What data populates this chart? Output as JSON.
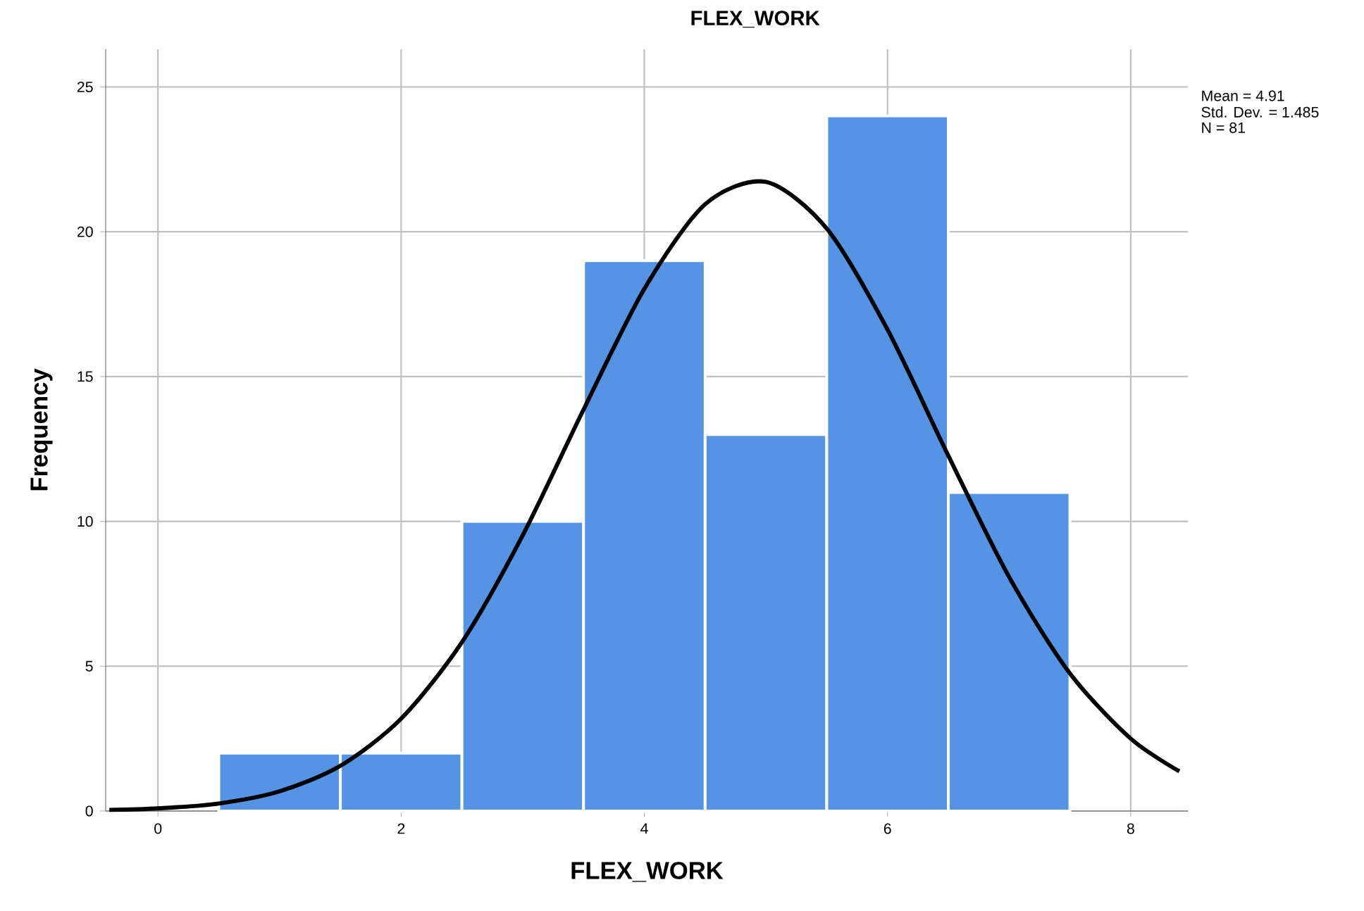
{
  "chart_data": {
    "type": "histogram",
    "title": "FLEX_WORK",
    "xlabel": "FLEX_WORK",
    "ylabel": "Frequency",
    "bins": [
      0.5,
      1.5,
      2.5,
      3.5,
      4.5,
      5.5,
      6.5,
      7.5
    ],
    "values": [
      2,
      2,
      10,
      19,
      13,
      24,
      11
    ],
    "color": "#5594e4",
    "series": [
      {
        "type": "line",
        "color": "#000000",
        "x": [
          -0.4,
          0,
          0.5,
          1,
          1.5,
          2,
          2.5,
          3,
          3.5,
          4,
          4.5,
          5,
          5.5,
          6,
          6.5,
          7,
          7.5,
          8,
          8.4
        ],
        "values": [
          0.04,
          0.09,
          0.26,
          0.68,
          1.56,
          3.19,
          5.83,
          9.52,
          13.86,
          18.03,
          20.95,
          21.72,
          20.11,
          16.62,
          12.27,
          8.08,
          4.75,
          2.5,
          1.37
        ]
      }
    ],
    "xlim": [
      -0.43,
      8.47
    ],
    "ylim": [
      0,
      26.3
    ],
    "xticks": [
      0,
      2,
      4,
      6,
      8
    ],
    "yticks": [
      0,
      5,
      10,
      15,
      20,
      25
    ],
    "grid": true,
    "annotations": [
      "Mean = 4.91",
      "Std. Dev. = 1.485",
      "N = 81"
    ]
  }
}
